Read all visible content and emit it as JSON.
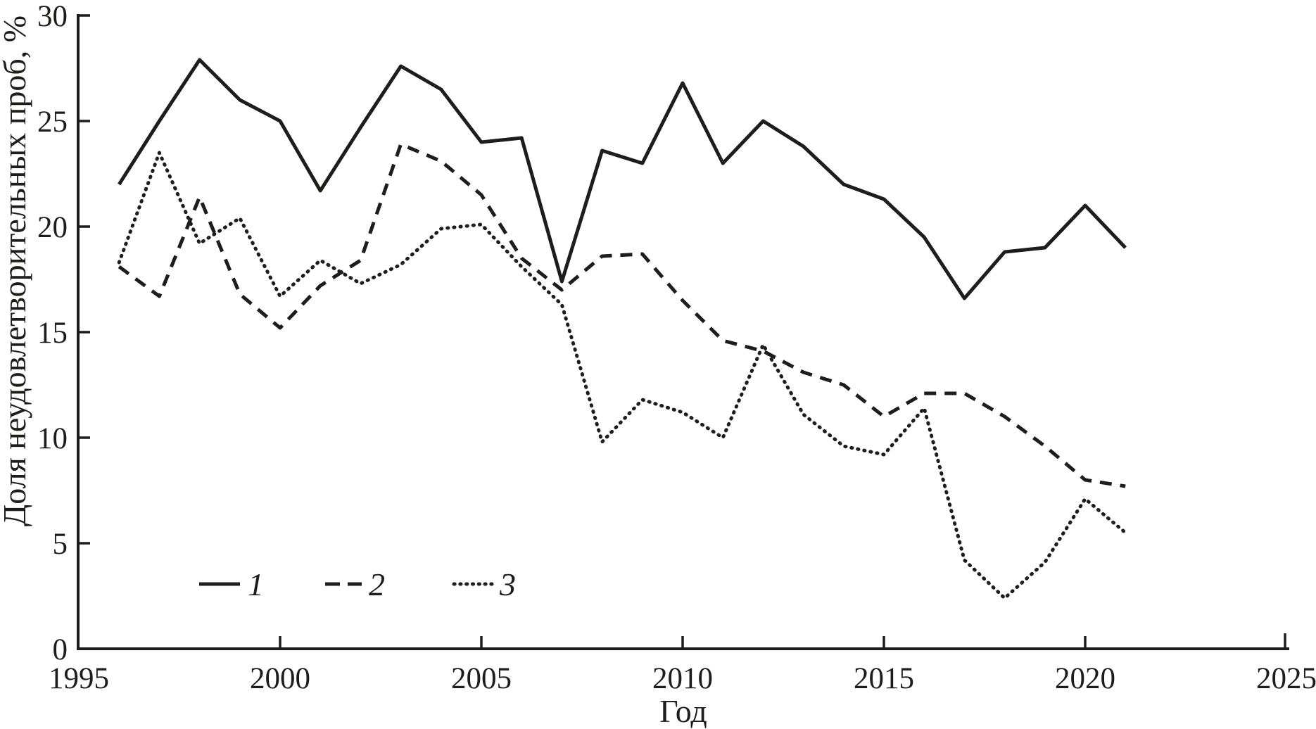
{
  "figure": {
    "background": "#ffffff",
    "ink_color": "#1d1d1b"
  },
  "chart_data": {
    "type": "line",
    "title": "",
    "xlabel": "Год",
    "ylabel": "Доля неудовлетворительных проб, %",
    "xlim": [
      1995,
      2025
    ],
    "ylim": [
      0,
      30
    ],
    "xticks": [
      1995,
      2000,
      2005,
      2010,
      2015,
      2020,
      2025
    ],
    "yticks": [
      0,
      5,
      10,
      15,
      20,
      25,
      30
    ],
    "grid": false,
    "legend_position": "lower-left-inside",
    "x": [
      1996,
      1997,
      1998,
      1999,
      2000,
      2001,
      2002,
      2003,
      2004,
      2005,
      2006,
      2007,
      2008,
      2009,
      2010,
      2011,
      2012,
      2013,
      2014,
      2015,
      2016,
      2017,
      2018,
      2019,
      2020,
      2021
    ],
    "series": [
      {
        "name": "1",
        "style": "solid",
        "values": [
          22.0,
          25.0,
          27.9,
          26.0,
          25.0,
          21.7,
          24.7,
          27.6,
          26.5,
          24.0,
          24.2,
          17.4,
          23.6,
          23.0,
          26.8,
          23.0,
          25.0,
          23.8,
          22.0,
          21.3,
          19.5,
          16.6,
          18.8,
          19.0,
          21.0,
          19.0
        ]
      },
      {
        "name": "2",
        "style": "dashed",
        "values": [
          18.1,
          16.7,
          21.4,
          16.8,
          15.2,
          17.2,
          18.4,
          23.9,
          23.1,
          21.5,
          18.5,
          17.0,
          18.6,
          18.7,
          16.5,
          14.6,
          14.1,
          13.1,
          12.5,
          11.0,
          12.1,
          12.1,
          11.0,
          9.6,
          8.0,
          7.7
        ]
      },
      {
        "name": "3",
        "style": "dotted",
        "values": [
          18.3,
          23.5,
          19.2,
          20.4,
          16.7,
          18.4,
          17.3,
          18.2,
          19.9,
          20.1,
          18.1,
          16.3,
          9.8,
          11.8,
          11.2,
          10.0,
          14.4,
          11.1,
          9.6,
          9.2,
          11.4,
          4.2,
          2.4,
          4.1,
          7.1,
          5.5
        ]
      }
    ],
    "legend": [
      {
        "label": "1",
        "style": "solid"
      },
      {
        "label": "2",
        "style": "dashed"
      },
      {
        "label": "3",
        "style": "dotted"
      }
    ]
  }
}
